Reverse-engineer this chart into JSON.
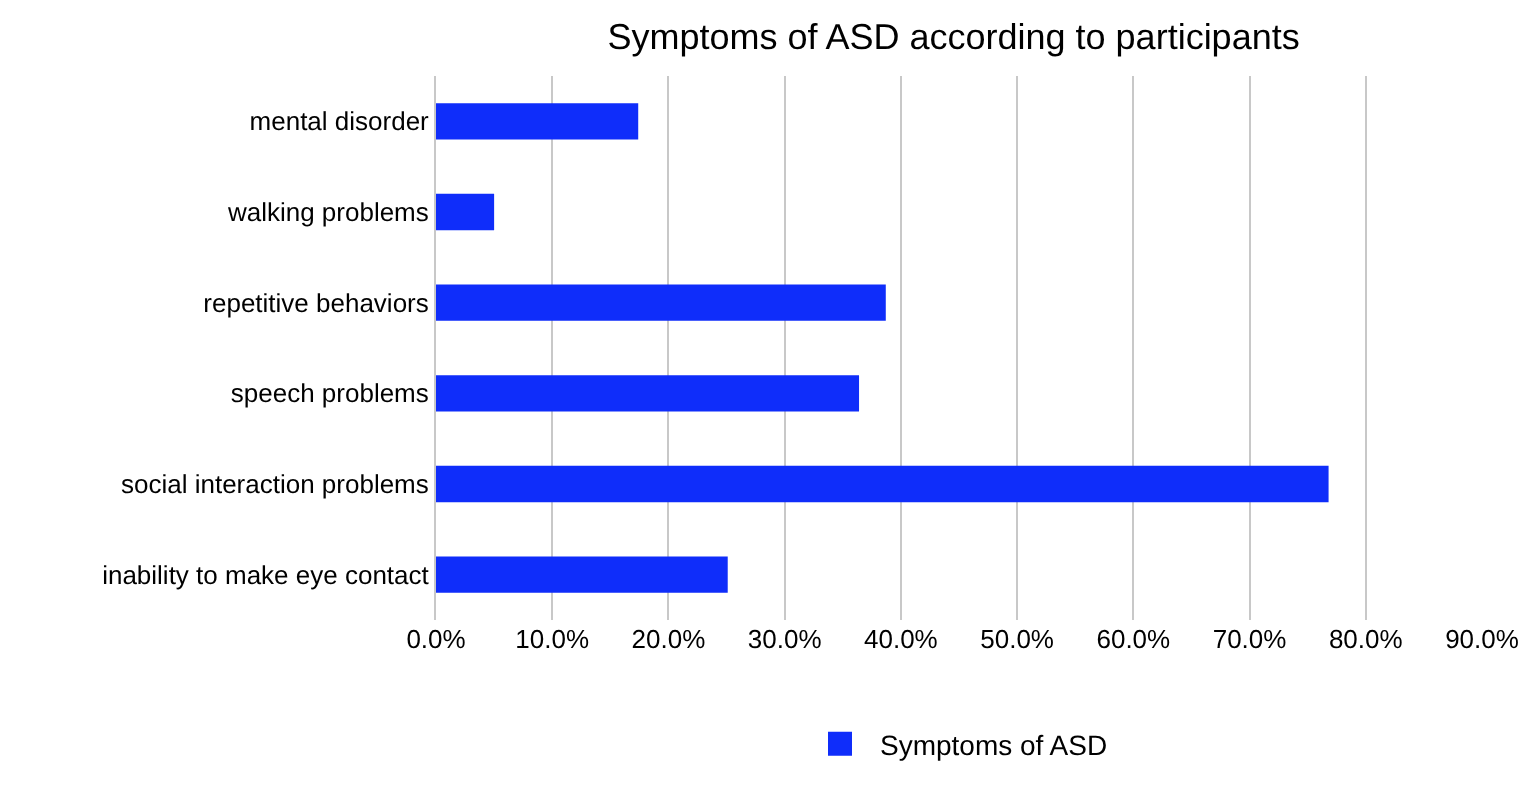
{
  "chart_data": {
    "type": "bar",
    "orientation": "horizontal",
    "title": "Symptoms of ASD according to participants",
    "categories": [
      "mental disorder",
      "walking problems",
      "repetitive behaviors",
      "speech problems",
      "social interaction problems",
      "inability to make eye contact"
    ],
    "series": [
      {
        "name": "Symptoms of ASD",
        "color": "#0f2dfa",
        "values": [
          17.4,
          5.0,
          38.7,
          36.4,
          76.8,
          25.1
        ]
      }
    ],
    "xlim": [
      0,
      90
    ],
    "xticks": [
      {
        "value": 0,
        "label": "0.0%"
      },
      {
        "value": 10,
        "label": "10.0%"
      },
      {
        "value": 20,
        "label": "20.0%"
      },
      {
        "value": 30,
        "label": "30.0%"
      },
      {
        "value": 40,
        "label": "40.0%"
      },
      {
        "value": 50,
        "label": "50.0%"
      },
      {
        "value": 60,
        "label": "60.0%"
      },
      {
        "value": 70,
        "label": "70.0%"
      },
      {
        "value": 80,
        "label": "80.0%"
      },
      {
        "value": 90,
        "label": "90.0%"
      }
    ],
    "grid": "x",
    "legend": "bottom"
  }
}
